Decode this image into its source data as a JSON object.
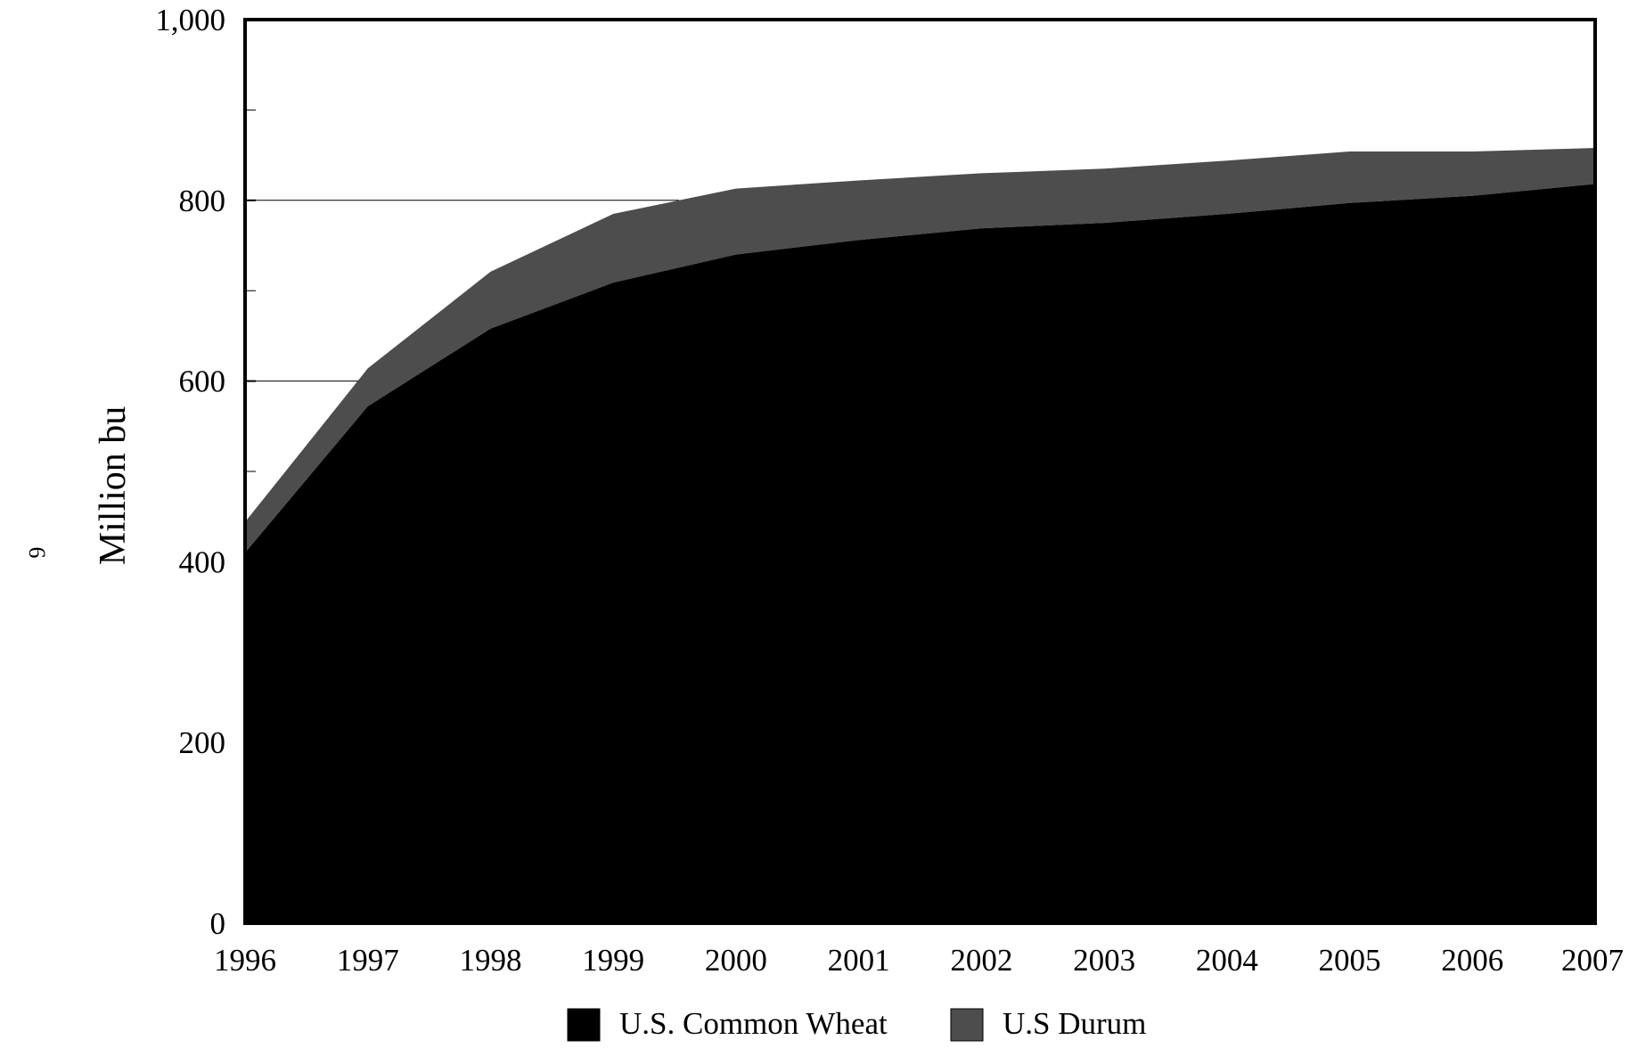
{
  "page_number": "6",
  "colors": {
    "common_wheat": "#000000",
    "durum": "#4d4d4d",
    "frame": "#000000",
    "gridline": "#000000",
    "background": "#ffffff"
  },
  "chart_data": {
    "type": "area",
    "stacked": true,
    "title": "",
    "xlabel": "",
    "ylabel": "Million bu",
    "x": [
      1996,
      1997,
      1998,
      1999,
      2000,
      2001,
      2002,
      2003,
      2004,
      2005,
      2006,
      2007
    ],
    "x_tick_labels": [
      "1996",
      "1997",
      "1998",
      "1999",
      "2000",
      "2001",
      "2002",
      "2003",
      "2004",
      "2005",
      "2006",
      "2007"
    ],
    "ylim": [
      0,
      1000
    ],
    "y_ticks": [
      0,
      200,
      400,
      600,
      800,
      1000
    ],
    "y_tick_labels": [
      "0",
      "200",
      "400",
      "600",
      "800",
      "1,000"
    ],
    "y_minor_ticks": [
      100,
      300,
      500,
      700,
      900
    ],
    "gridlines": [
      600,
      800
    ],
    "legend_position": "bottom-center",
    "series": [
      {
        "name": "U.S. Common Wheat",
        "values": [
          410,
          572,
          658,
          709,
          740,
          756,
          769,
          775,
          785,
          797,
          805,
          818
        ]
      },
      {
        "name": "U.S Durum",
        "values": [
          34,
          42,
          63,
          76,
          73,
          66,
          61,
          60,
          59,
          57,
          49,
          40
        ]
      }
    ]
  }
}
